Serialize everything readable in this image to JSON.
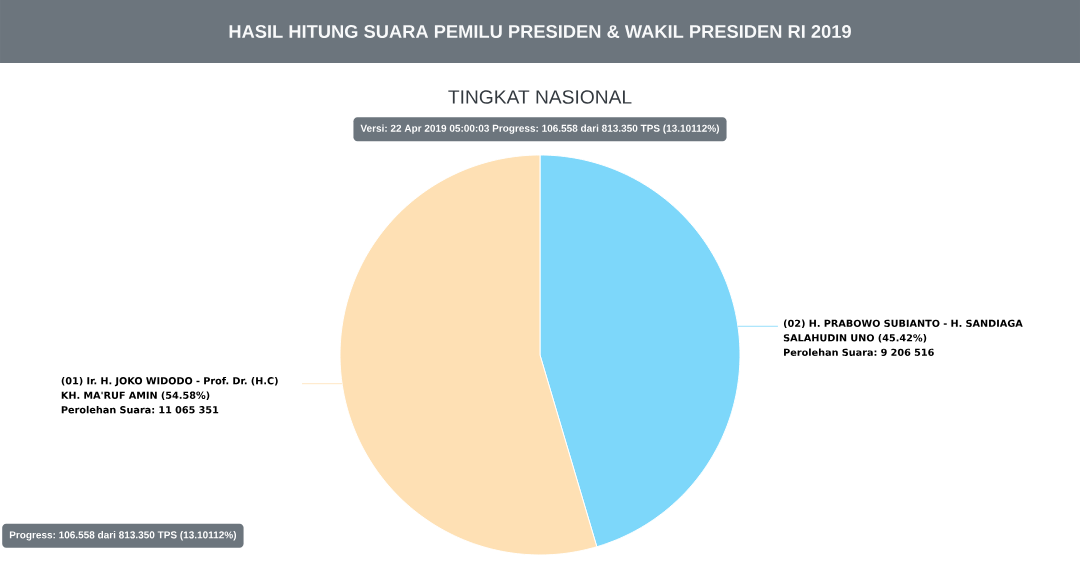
{
  "chart_data": {
    "type": "pie",
    "title": "HASIL HITUNG SUARA PEMILU PRESIDEN & WAKIL PRESIDEN RI 2019",
    "subtitle": "TINGKAT NASIONAL",
    "categories": [
      "(02) H. PRABOWO SUBIANTO - H. SANDIAGA SALAHUDIN UNO (45.42%)",
      "(01) Ir. H. JOKO WIDODO - Prof. Dr. (H.C) KH. MA'RUF AMIN (54.58%)"
    ],
    "values": [
      9206516,
      11065351
    ],
    "value_labels": [
      "Perolehan Suara: 9 206 516",
      "Perolehan Suara: 11 065 351"
    ],
    "colors": [
      "#7dd7fa",
      "#fee0b4"
    ],
    "annotations": [
      "Versi: 22 Apr 2019 05:00:03 Progress: 106.558 dari 813.350 TPS (13.10112%)",
      "Progress: 106.558 dari 813.350 TPS (13.10112%)"
    ]
  }
}
